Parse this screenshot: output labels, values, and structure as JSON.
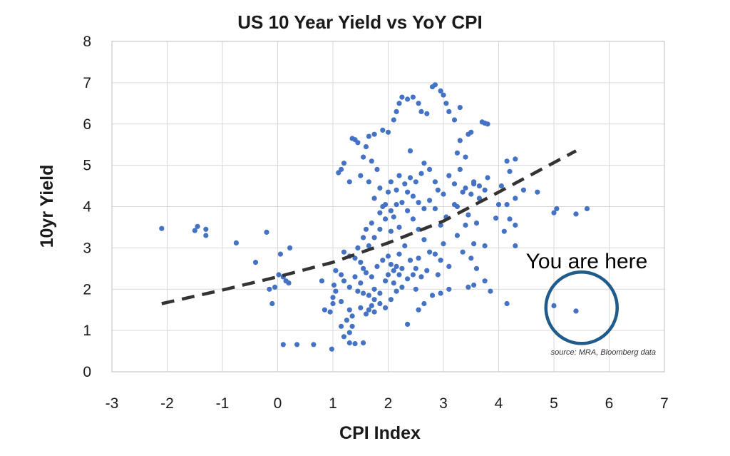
{
  "chart_data": {
    "type": "scatter",
    "title": "US 10 Year Yield vs YoY CPI",
    "xlabel": "CPI Index",
    "ylabel": "10yr Yield",
    "xlim": [
      -3,
      7
    ],
    "ylim": [
      0,
      8
    ],
    "xticks": [
      "-3",
      "-2",
      "-1",
      "0",
      "1",
      "2",
      "3",
      "4",
      "5",
      "6",
      "7"
    ],
    "yticks": [
      "0",
      "1",
      "2",
      "3",
      "4",
      "5",
      "6",
      "7",
      "8"
    ],
    "grid": true,
    "point_color": "#4472C4",
    "trend_color": "#333333",
    "highlight_color": "#1F5C8B",
    "trend_line": {
      "style": "dashed",
      "points": [
        [
          -2.1,
          1.65
        ],
        [
          -1,
          1.98
        ],
        [
          0,
          2.3
        ],
        [
          1,
          2.65
        ],
        [
          2,
          3.12
        ],
        [
          3,
          3.65
        ],
        [
          4,
          4.35
        ],
        [
          5.4,
          5.35
        ]
      ]
    },
    "annotation": "You are here",
    "highlight_center": [
      5.5,
      1.55
    ],
    "source": "source: MRA, Bloomberg data",
    "points": [
      [
        -2.1,
        3.47
      ],
      [
        -1.5,
        3.42
      ],
      [
        -1.45,
        3.52
      ],
      [
        -1.3,
        3.45
      ],
      [
        -1.3,
        3.3
      ],
      [
        -0.75,
        3.12
      ],
      [
        -0.2,
        3.38
      ],
      [
        -0.4,
        2.65
      ],
      [
        -0.05,
        2.05
      ],
      [
        -0.1,
        1.65
      ],
      [
        0.05,
        2.85
      ],
      [
        0.1,
        2.3
      ],
      [
        0.15,
        2.2
      ],
      [
        0.2,
        2.15
      ],
      [
        0.22,
        3.0
      ],
      [
        0.1,
        0.66
      ],
      [
        0.35,
        0.66
      ],
      [
        0.65,
        0.66
      ],
      [
        0.98,
        0.55
      ],
      [
        -0.15,
        2.0
      ],
      [
        0.02,
        2.35
      ],
      [
        0.8,
        2.2
      ],
      [
        1.0,
        1.8
      ],
      [
        1.05,
        1.95
      ],
      [
        1.02,
        2.1
      ],
      [
        1.15,
        1.7
      ],
      [
        1.1,
        4.82
      ],
      [
        1.15,
        4.9
      ],
      [
        1.2,
        5.05
      ],
      [
        1.35,
        5.65
      ],
      [
        1.4,
        5.62
      ],
      [
        1.45,
        5.55
      ],
      [
        1.6,
        5.45
      ],
      [
        1.65,
        5.7
      ],
      [
        1.75,
        5.75
      ],
      [
        1.55,
        5.2
      ],
      [
        1.7,
        5.1
      ],
      [
        1.8,
        4.9
      ],
      [
        1.5,
        4.75
      ],
      [
        1.65,
        4.6
      ],
      [
        1.3,
        4.6
      ],
      [
        1.85,
        4.45
      ],
      [
        1.75,
        4.2
      ],
      [
        1.9,
        4.0
      ],
      [
        2.0,
        4.35
      ],
      [
        2.05,
        4.6
      ],
      [
        2.15,
        4.4
      ],
      [
        2.2,
        4.75
      ],
      [
        2.3,
        4.55
      ],
      [
        2.4,
        4.7
      ],
      [
        2.5,
        4.6
      ],
      [
        2.6,
        4.8
      ],
      [
        2.65,
        5.05
      ],
      [
        2.75,
        4.9
      ],
      [
        2.85,
        4.6
      ],
      [
        2.9,
        4.4
      ],
      [
        3.0,
        4.3
      ],
      [
        3.1,
        4.75
      ],
      [
        3.2,
        4.55
      ],
      [
        3.3,
        4.9
      ],
      [
        3.4,
        4.45
      ],
      [
        3.5,
        4.3
      ],
      [
        3.55,
        4.6
      ],
      [
        3.65,
        4.2
      ],
      [
        3.75,
        4.4
      ],
      [
        3.8,
        4.7
      ],
      [
        1.9,
        5.85
      ],
      [
        2.0,
        5.8
      ],
      [
        2.1,
        6.1
      ],
      [
        2.15,
        6.3
      ],
      [
        2.2,
        6.5
      ],
      [
        2.25,
        6.65
      ],
      [
        2.35,
        6.6
      ],
      [
        2.45,
        6.65
      ],
      [
        2.55,
        6.5
      ],
      [
        2.6,
        6.3
      ],
      [
        2.7,
        6.25
      ],
      [
        2.8,
        6.9
      ],
      [
        2.85,
        6.95
      ],
      [
        2.95,
        6.8
      ],
      [
        3.0,
        6.7
      ],
      [
        3.05,
        6.5
      ],
      [
        3.1,
        6.3
      ],
      [
        3.2,
        6.1
      ],
      [
        3.3,
        6.4
      ],
      [
        2.4,
        5.35
      ],
      [
        3.3,
        5.6
      ],
      [
        3.45,
        5.75
      ],
      [
        3.5,
        5.8
      ],
      [
        3.7,
        6.05
      ],
      [
        3.75,
        6.02
      ],
      [
        3.8,
        6.0
      ],
      [
        3.25,
        5.3
      ],
      [
        3.4,
        5.2
      ],
      [
        4.15,
        5.1
      ],
      [
        4.3,
        5.15
      ],
      [
        4.2,
        4.85
      ],
      [
        4.05,
        4.5
      ],
      [
        4.0,
        4.05
      ],
      [
        4.15,
        4.05
      ],
      [
        4.3,
        4.2
      ],
      [
        4.45,
        4.4
      ],
      [
        4.7,
        4.35
      ],
      [
        3.95,
        3.72
      ],
      [
        4.2,
        3.7
      ],
      [
        4.3,
        3.55
      ],
      [
        4.1,
        3.4
      ],
      [
        4.3,
        3.05
      ],
      [
        5.0,
        3.85
      ],
      [
        5.05,
        3.95
      ],
      [
        5.4,
        3.82
      ],
      [
        5.6,
        3.95
      ],
      [
        1.2,
        2.9
      ],
      [
        1.3,
        2.8
      ],
      [
        1.4,
        2.75
      ],
      [
        1.5,
        2.65
      ],
      [
        1.55,
        2.5
      ],
      [
        1.6,
        2.4
      ],
      [
        1.7,
        2.3
      ],
      [
        1.8,
        2.55
      ],
      [
        1.9,
        2.7
      ],
      [
        2.0,
        2.35
      ],
      [
        2.05,
        2.6
      ],
      [
        2.1,
        2.45
      ],
      [
        2.15,
        2.55
      ],
      [
        2.2,
        2.35
      ],
      [
        2.25,
        2.5
      ],
      [
        1.6,
        3.45
      ],
      [
        1.7,
        3.6
      ],
      [
        1.85,
        3.45
      ],
      [
        1.95,
        3.7
      ],
      [
        2.05,
        3.4
      ],
      [
        2.1,
        3.75
      ],
      [
        2.2,
        3.5
      ],
      [
        2.35,
        3.9
      ],
      [
        2.45,
        3.7
      ],
      [
        2.55,
        3.45
      ],
      [
        2.65,
        3.2
      ],
      [
        2.75,
        2.9
      ],
      [
        2.85,
        2.85
      ],
      [
        2.95,
        2.7
      ],
      [
        2.55,
        2.75
      ],
      [
        2.45,
        2.35
      ],
      [
        2.35,
        2.25
      ],
      [
        2.25,
        2.05
      ],
      [
        2.15,
        1.95
      ],
      [
        2.05,
        1.75
      ],
      [
        1.95,
        2.2
      ],
      [
        1.85,
        1.9
      ],
      [
        1.75,
        1.75
      ],
      [
        1.7,
        1.6
      ],
      [
        1.65,
        1.5
      ],
      [
        1.6,
        1.4
      ],
      [
        1.75,
        1.45
      ],
      [
        1.85,
        1.65
      ],
      [
        1.45,
        1.95
      ],
      [
        1.5,
        1.55
      ],
      [
        1.35,
        1.35
      ],
      [
        1.3,
        1.5
      ],
      [
        1.25,
        1.25
      ],
      [
        1.35,
        1.1
      ],
      [
        1.3,
        0.95
      ],
      [
        1.2,
        0.85
      ],
      [
        1.3,
        0.7
      ],
      [
        1.4,
        0.68
      ],
      [
        1.55,
        0.7
      ],
      [
        1.15,
        1.1
      ],
      [
        0.85,
        1.5
      ],
      [
        0.95,
        1.45
      ],
      [
        1.0,
        1.65
      ],
      [
        1.05,
        2.45
      ],
      [
        1.15,
        2.35
      ],
      [
        1.2,
        2.2
      ],
      [
        1.3,
        2.05
      ],
      [
        1.4,
        2.3
      ],
      [
        1.5,
        2.15
      ],
      [
        1.55,
        1.9
      ],
      [
        1.65,
        1.85
      ],
      [
        1.75,
        2.0
      ],
      [
        2.35,
        1.15
      ],
      [
        2.55,
        1.5
      ],
      [
        2.65,
        1.65
      ],
      [
        2.8,
        1.85
      ],
      [
        2.95,
        1.9
      ],
      [
        3.1,
        2.0
      ],
      [
        3.25,
        3.3
      ],
      [
        3.45,
        2.05
      ],
      [
        3.55,
        2.1
      ],
      [
        3.75,
        2.2
      ],
      [
        3.85,
        1.95
      ],
      [
        4.15,
        1.65
      ],
      [
        3.35,
        2.9
      ],
      [
        3.5,
        2.75
      ],
      [
        3.6,
        2.5
      ],
      [
        3.55,
        3.1
      ],
      [
        3.75,
        3.05
      ],
      [
        3.6,
        3.6
      ],
      [
        3.45,
        3.8
      ],
      [
        3.25,
        4.0
      ],
      [
        3.05,
        3.75
      ],
      [
        2.95,
        3.55
      ],
      [
        2.85,
        3.95
      ],
      [
        2.75,
        4.15
      ],
      [
        2.65,
        3.95
      ],
      [
        2.55,
        4.1
      ],
      [
        2.45,
        4.25
      ],
      [
        2.35,
        4.35
      ],
      [
        2.25,
        4.1
      ],
      [
        2.15,
        4.05
      ],
      [
        2.05,
        3.9
      ],
      [
        1.95,
        4.05
      ],
      [
        1.85,
        3.85
      ],
      [
        1.75,
        3.25
      ],
      [
        1.65,
        3.05
      ],
      [
        1.55,
        3.25
      ],
      [
        1.45,
        3.0
      ],
      [
        2.5,
        2.0
      ],
      [
        2.4,
        2.7
      ],
      [
        2.3,
        3.05
      ],
      [
        2.2,
        2.85
      ],
      [
        2.1,
        2.15
      ],
      [
        2.0,
        2.8
      ],
      [
        3.1,
        2.55
      ],
      [
        2.9,
        2.35
      ],
      [
        2.7,
        2.45
      ],
      [
        3.0,
        3.1
      ],
      [
        3.2,
        4.05
      ],
      [
        3.35,
        4.35
      ],
      [
        3.55,
        4.55
      ],
      [
        3.65,
        4.5
      ],
      [
        3.4,
        3.55
      ],
      [
        2.6,
        2.3
      ],
      [
        2.5,
        2.5
      ],
      [
        1.95,
        1.55
      ],
      [
        5.0,
        1.6
      ],
      [
        5.4,
        1.47
      ]
    ]
  }
}
